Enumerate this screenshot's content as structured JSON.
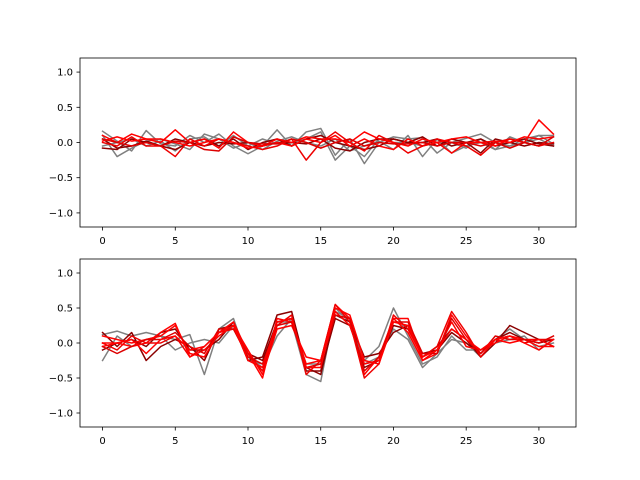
{
  "chart_data": [
    {
      "type": "line",
      "title": "",
      "xlabel": "",
      "ylabel": "",
      "xlim": [
        -1.55,
        32.55
      ],
      "ylim": [
        -1.2,
        1.2
      ],
      "x_ticks": [
        0,
        5,
        10,
        15,
        20,
        25,
        30
      ],
      "y_ticks": [
        -1.0,
        -0.5,
        0.0,
        0.5,
        1.0
      ],
      "y_tick_labels": [
        "−1.0",
        "−0.5",
        "0.0",
        "0.5",
        "1.0"
      ],
      "grid": false,
      "x": [
        0,
        1,
        2,
        3,
        4,
        5,
        6,
        7,
        8,
        9,
        10,
        11,
        12,
        13,
        14,
        15,
        16,
        17,
        18,
        19,
        20,
        21,
        22,
        23,
        24,
        25,
        26,
        27,
        28,
        29,
        30,
        31
      ],
      "series": [
        {
          "color": "#808080",
          "values": [
            0.16,
            0.02,
            -0.12,
            0.17,
            -0.02,
            -0.05,
            0.1,
            0.0,
            0.12,
            -0.05,
            -0.16,
            -0.05,
            0.18,
            -0.05,
            0.15,
            0.2,
            -0.18,
            0.05,
            -0.3,
            0.0,
            0.08,
            0.05,
            0.07,
            -0.15,
            0.0,
            0.06,
            0.12,
            0.0,
            -0.05,
            0.05,
            0.1,
            0.1
          ]
        },
        {
          "color": "#808080",
          "values": [
            0.1,
            -0.2,
            -0.08,
            0.02,
            0.05,
            -0.02,
            -0.1,
            0.12,
            0.05,
            -0.08,
            0.0,
            -0.1,
            0.02,
            0.08,
            0.0,
            -0.05,
            0.05,
            -0.12,
            -0.05,
            0.02,
            -0.1,
            0.1,
            -0.2,
            0.05,
            -0.15,
            -0.05,
            0.0,
            -0.1,
            -0.05,
            0.0,
            0.1,
            -0.02
          ]
        },
        {
          "color": "#808080",
          "values": [
            -0.05,
            0.0,
            0.05,
            -0.05,
            0.02,
            -0.12,
            0.05,
            0.08,
            -0.05,
            0.1,
            -0.05,
            0.05,
            -0.02,
            0.0,
            0.05,
            0.15,
            -0.25,
            -0.05,
            -0.2,
            0.05,
            0.0,
            0.0,
            -0.05,
            0.0,
            0.0,
            -0.08,
            0.05,
            -0.1,
            0.08,
            0.0,
            0.05,
            -0.05
          ]
        },
        {
          "color": "#8b0000",
          "values": [
            0.05,
            -0.08,
            -0.05,
            0.02,
            -0.05,
            -0.1,
            0.0,
            0.05,
            -0.05,
            0.05,
            -0.1,
            0.0,
            0.05,
            -0.05,
            0.05,
            0.1,
            0.0,
            -0.05,
            -0.1,
            -0.05,
            0.05,
            0.0,
            0.08,
            -0.05,
            0.05,
            0.0,
            -0.15,
            0.05,
            0.0,
            -0.05,
            0.0,
            -0.02
          ]
        },
        {
          "color": "#8b0000",
          "values": [
            -0.08,
            -0.1,
            0.05,
            0.0,
            -0.05,
            0.05,
            0.0,
            -0.05,
            0.0,
            -0.02,
            0.0,
            -0.05,
            0.0,
            0.0,
            -0.02,
            0.05,
            -0.08,
            -0.12,
            0.0,
            0.05,
            0.05,
            0.0,
            0.0,
            0.05,
            -0.05,
            0.0,
            0.05,
            -0.05,
            0.0,
            0.05,
            -0.02,
            -0.05
          ]
        },
        {
          "color": "#ff0000",
          "values": [
            0.1,
            0.0,
            0.12,
            0.05,
            0.0,
            0.18,
            0.0,
            0.05,
            -0.08,
            0.15,
            0.0,
            -0.05,
            0.0,
            -0.05,
            0.05,
            0.0,
            0.1,
            -0.05,
            0.05,
            -0.05,
            -0.1,
            0.05,
            -0.05,
            0.0,
            -0.15,
            0.0,
            0.0,
            -0.05,
            0.05,
            0.0,
            0.32,
            0.12
          ]
        },
        {
          "color": "#ee0000",
          "values": [
            0.0,
            -0.05,
            0.08,
            -0.05,
            -0.05,
            -0.2,
            0.05,
            -0.05,
            0.05,
            0.0,
            -0.05,
            -0.1,
            -0.05,
            0.05,
            -0.25,
            0.0,
            0.15,
            0.0,
            -0.12,
            0.1,
            0.0,
            -0.15,
            -0.05,
            0.05,
            0.0,
            -0.05,
            -0.18,
            0.0,
            0.05,
            0.0,
            -0.05,
            0.0
          ]
        },
        {
          "color": "#ff0000",
          "values": [
            0.02,
            0.08,
            0.02,
            0.05,
            0.05,
            0.0,
            -0.05,
            0.0,
            0.05,
            0.0,
            -0.08,
            -0.05,
            0.05,
            0.0,
            0.08,
            0.05,
            0.05,
            0.0,
            0.15,
            0.05,
            0.0,
            -0.05,
            0.05,
            0.0,
            0.05,
            0.08,
            0.0,
            0.02,
            0.0,
            0.08,
            0.05,
            0.08
          ]
        },
        {
          "color": "#dd0000",
          "values": [
            0.05,
            0.0,
            -0.05,
            0.0,
            -0.05,
            0.02,
            0.0,
            -0.1,
            -0.12,
            0.08,
            0.0,
            -0.02,
            -0.02,
            0.05,
            0.0,
            -0.08,
            0.0,
            0.05,
            -0.05,
            0.0,
            -0.02,
            -0.02,
            0.0,
            -0.05,
            0.0,
            0.0,
            -0.05,
            0.0,
            -0.08,
            0.0,
            -0.05,
            0.08
          ]
        }
      ]
    },
    {
      "type": "line",
      "title": "",
      "xlabel": "",
      "ylabel": "",
      "xlim": [
        -1.55,
        32.55
      ],
      "ylim": [
        -1.2,
        1.2
      ],
      "x_ticks": [
        0,
        5,
        10,
        15,
        20,
        25,
        30
      ],
      "y_ticks": [
        -1.0,
        -0.5,
        0.0,
        0.5,
        1.0
      ],
      "y_tick_labels": [
        "−1.0",
        "−0.5",
        "0.0",
        "0.5",
        "1.0"
      ],
      "grid": false,
      "x": [
        0,
        1,
        2,
        3,
        4,
        5,
        6,
        7,
        8,
        9,
        10,
        11,
        12,
        13,
        14,
        15,
        16,
        17,
        18,
        19,
        20,
        21,
        22,
        23,
        24,
        25,
        26,
        27,
        28,
        29,
        30,
        31
      ],
      "series": [
        {
          "color": "#808080",
          "values": [
            0.12,
            0.17,
            0.1,
            0.15,
            0.1,
            0.05,
            0.12,
            -0.45,
            0.2,
            0.35,
            -0.25,
            -0.3,
            0.3,
            0.3,
            -0.45,
            -0.55,
            0.5,
            0.3,
            -0.25,
            -0.05,
            0.5,
            0.1,
            -0.3,
            -0.2,
            0.1,
            -0.1,
            -0.1,
            0.05,
            0.2,
            0.05,
            -0.05,
            0.0
          ]
        },
        {
          "color": "#808080",
          "values": [
            -0.25,
            0.1,
            -0.05,
            0.05,
            0.1,
            -0.1,
            0.0,
            0.05,
            0.0,
            0.25,
            -0.2,
            -0.35,
            0.1,
            0.35,
            -0.3,
            -0.3,
            0.45,
            0.35,
            -0.3,
            -0.2,
            0.2,
            0.05,
            -0.35,
            -0.15,
            0.05,
            0.0,
            -0.2,
            0.0,
            0.05,
            0.1,
            -0.1,
            0.05
          ]
        },
        {
          "color": "#8b0000",
          "values": [
            0.15,
            -0.05,
            0.15,
            -0.25,
            -0.05,
            0.05,
            -0.05,
            -0.25,
            0.2,
            0.25,
            -0.25,
            -0.2,
            0.4,
            0.45,
            -0.35,
            -0.45,
            0.4,
            0.3,
            -0.2,
            -0.15,
            0.15,
            0.25,
            -0.2,
            -0.05,
            0.2,
            0.05,
            -0.2,
            0.0,
            0.25,
            0.15,
            0.05,
            -0.05
          ]
        },
        {
          "color": "#8b0000",
          "values": [
            -0.1,
            0.0,
            0.05,
            -0.05,
            0.15,
            0.2,
            -0.1,
            -0.1,
            0.05,
            0.3,
            -0.15,
            -0.25,
            0.3,
            0.35,
            -0.4,
            -0.4,
            0.35,
            0.25,
            -0.35,
            -0.25,
            0.25,
            0.2,
            -0.15,
            -0.1,
            0.15,
            0.0,
            -0.15,
            0.05,
            0.15,
            0.05,
            0.0,
            0.05
          ]
        },
        {
          "color": "#ff0000",
          "values": [
            0.1,
            0.05,
            0.0,
            0.05,
            0.1,
            0.25,
            -0.15,
            -0.2,
            0.15,
            0.3,
            -0.15,
            -0.5,
            0.35,
            0.3,
            -0.3,
            -0.25,
            0.55,
            0.35,
            -0.45,
            -0.2,
            0.35,
            0.35,
            -0.25,
            -0.15,
            0.4,
            0.1,
            -0.15,
            0.05,
            0.0,
            0.05,
            -0.05,
            -0.05
          ]
        },
        {
          "color": "#ee0000",
          "values": [
            0.0,
            -0.1,
            0.1,
            0.0,
            0.0,
            0.1,
            -0.2,
            -0.05,
            0.15,
            0.2,
            -0.15,
            -0.4,
            0.25,
            0.4,
            -0.45,
            -0.25,
            0.55,
            0.3,
            -0.5,
            -0.3,
            0.4,
            0.2,
            -0.2,
            -0.05,
            0.45,
            0.15,
            -0.2,
            0.05,
            0.1,
            0.0,
            0.05,
            0.05
          ]
        },
        {
          "color": "#ff0000",
          "values": [
            -0.05,
            0.0,
            -0.05,
            0.0,
            0.15,
            0.28,
            -0.2,
            -0.1,
            0.1,
            0.25,
            -0.1,
            -0.45,
            0.2,
            0.25,
            -0.2,
            -0.25,
            0.45,
            0.25,
            -0.3,
            -0.25,
            0.35,
            0.15,
            -0.25,
            -0.1,
            0.3,
            -0.05,
            -0.1,
            0.0,
            0.1,
            0.05,
            0.05,
            -0.05
          ]
        },
        {
          "color": "#dd0000",
          "values": [
            -0.05,
            -0.15,
            -0.05,
            0.05,
            0.05,
            0.15,
            -0.05,
            -0.15,
            0.2,
            0.2,
            -0.2,
            -0.3,
            0.25,
            0.3,
            -0.35,
            -0.3,
            0.4,
            0.35,
            -0.4,
            -0.2,
            0.3,
            0.3,
            -0.15,
            -0.15,
            0.35,
            0.05,
            -0.15,
            0.1,
            0.05,
            0.05,
            0.0,
            0.1
          ]
        },
        {
          "color": "#ff0000",
          "values": [
            0.0,
            0.0,
            0.05,
            -0.15,
            0.05,
            0.1,
            -0.1,
            -0.05,
            0.15,
            0.25,
            -0.25,
            -0.35,
            0.3,
            0.35,
            -0.35,
            -0.35,
            0.5,
            0.4,
            -0.25,
            -0.3,
            0.3,
            0.25,
            -0.2,
            -0.1,
            0.2,
            0.05,
            -0.1,
            0.05,
            0.1,
            0.0,
            -0.1,
            0.05
          ]
        }
      ]
    }
  ]
}
